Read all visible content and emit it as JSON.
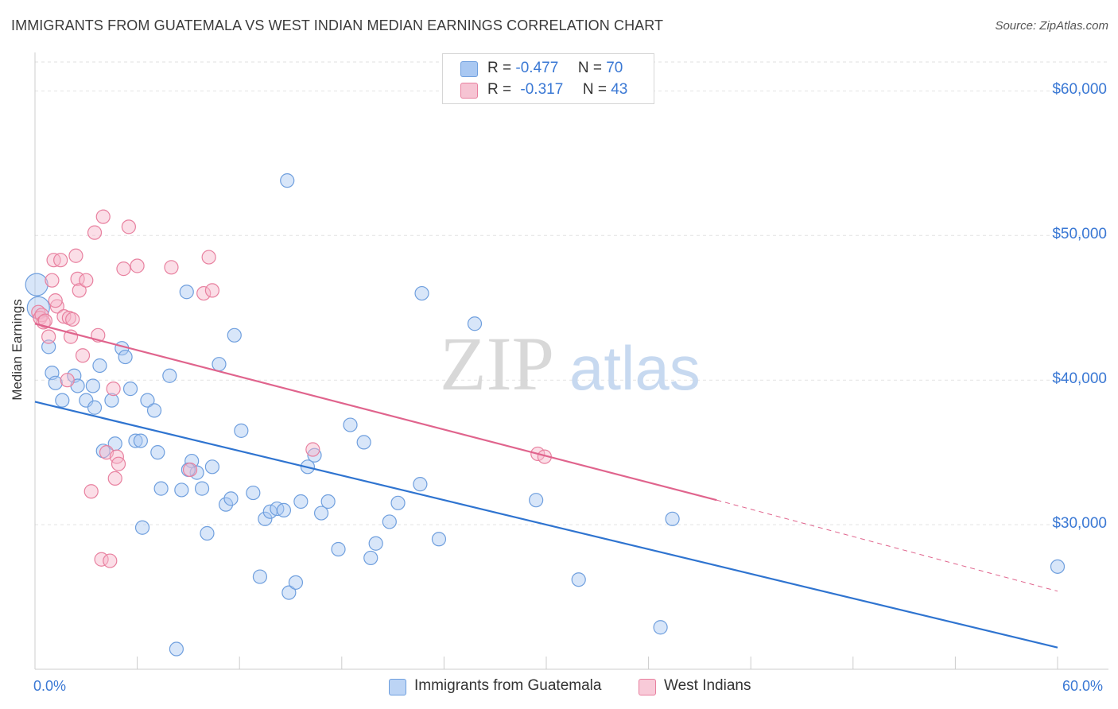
{
  "title": "IMMIGRANTS FROM GUATEMALA VS WEST INDIAN MEDIAN EARNINGS CORRELATION CHART",
  "source": "Source: ZipAtlas.com",
  "watermark": {
    "zip": "ZIP",
    "atlas": "atlas"
  },
  "legend": {
    "rows": [
      {
        "r_label": "R =",
        "r_value": "-0.477",
        "n_label": "N =",
        "n_value": "70",
        "color": "#a9c8f2"
      },
      {
        "r_label": "R =",
        "r_value": "-0.317",
        "n_label": "N =",
        "n_value": "43",
        "color": "#f6b6c9"
      }
    ]
  },
  "colors": {
    "blue_fill": "#a9c8f2",
    "blue_stroke": "#6f9fde",
    "blue_line": "#2f74d0",
    "pink_fill": "#f6b6c9",
    "pink_stroke": "#e8809f",
    "pink_line": "#e0648d",
    "axis_text": "#3a78d4",
    "grid": "#e2e2e2"
  },
  "chart_data": {
    "type": "scatter",
    "title": "IMMIGRANTS FROM GUATEMALA VS WEST INDIAN MEDIAN EARNINGS CORRELATION CHART",
    "xlabel": "",
    "ylabel": "Median Earnings",
    "x_tick_labels": [
      "0.0%",
      "60.0%"
    ],
    "y_tick_labels": [
      "$60,000",
      "$50,000",
      "$40,000",
      "$30,000"
    ],
    "y_ticks": [
      60000,
      50000,
      40000,
      30000
    ],
    "xlim": [
      0,
      60
    ],
    "ylim": [
      20000,
      62000
    ],
    "grid": true,
    "legend_position": "bottom-center",
    "series": [
      {
        "name": "Immigrants from Guatemala",
        "color": "#a9c8f2",
        "trend": {
          "x_start": 0,
          "y_start": 38500,
          "x_end": 60,
          "y_end": 21500
        },
        "points": [
          [
            0.1,
            46600
          ],
          [
            0.2,
            45000
          ],
          [
            0.8,
            42300
          ],
          [
            1.0,
            40500
          ],
          [
            1.2,
            39800
          ],
          [
            1.6,
            38600
          ],
          [
            2.3,
            40300
          ],
          [
            2.5,
            39600
          ],
          [
            3.0,
            38600
          ],
          [
            3.4,
            39600
          ],
          [
            3.5,
            38100
          ],
          [
            3.8,
            41000
          ],
          [
            4.0,
            35100
          ],
          [
            4.5,
            38600
          ],
          [
            4.7,
            35600
          ],
          [
            5.1,
            42200
          ],
          [
            5.3,
            41600
          ],
          [
            5.6,
            39400
          ],
          [
            5.9,
            35800
          ],
          [
            6.2,
            35800
          ],
          [
            6.3,
            29800
          ],
          [
            6.6,
            38600
          ],
          [
            7.0,
            37900
          ],
          [
            7.2,
            35000
          ],
          [
            7.4,
            32500
          ],
          [
            7.9,
            40300
          ],
          [
            8.3,
            21400
          ],
          [
            8.6,
            32400
          ],
          [
            8.9,
            46100
          ],
          [
            9.2,
            34400
          ],
          [
            9.5,
            33600
          ],
          [
            9.8,
            32500
          ],
          [
            10.1,
            29400
          ],
          [
            10.4,
            34000
          ],
          [
            10.8,
            41100
          ],
          [
            11.2,
            31400
          ],
          [
            11.5,
            31800
          ],
          [
            11.7,
            43100
          ],
          [
            12.1,
            36500
          ],
          [
            12.8,
            32200
          ],
          [
            13.2,
            26400
          ],
          [
            13.5,
            30400
          ],
          [
            13.8,
            30900
          ],
          [
            14.2,
            31100
          ],
          [
            14.6,
            31000
          ],
          [
            14.8,
            53800
          ],
          [
            14.9,
            25300
          ],
          [
            15.3,
            26000
          ],
          [
            15.6,
            31600
          ],
          [
            16.0,
            34000
          ],
          [
            16.4,
            34800
          ],
          [
            16.8,
            30800
          ],
          [
            17.2,
            31600
          ],
          [
            17.8,
            28300
          ],
          [
            18.5,
            36900
          ],
          [
            19.3,
            35700
          ],
          [
            19.7,
            27700
          ],
          [
            20.0,
            28700
          ],
          [
            20.8,
            30200
          ],
          [
            21.3,
            31500
          ],
          [
            22.6,
            32800
          ],
          [
            22.7,
            46000
          ],
          [
            23.7,
            29000
          ],
          [
            25.8,
            43900
          ],
          [
            29.4,
            31700
          ],
          [
            31.9,
            26200
          ],
          [
            36.7,
            22900
          ],
          [
            37.4,
            30400
          ],
          [
            60.0,
            27100
          ],
          [
            9.0,
            33800
          ]
        ]
      },
      {
        "name": "West Indians",
        "color": "#f6b6c9",
        "trend": {
          "x_start": 0,
          "y_start": 43900,
          "x_end": 40,
          "y_end": 31700,
          "dashed_to_x": 60,
          "dashed_to_y": 25400
        },
        "points": [
          [
            0.2,
            44700
          ],
          [
            0.3,
            44300
          ],
          [
            0.4,
            44500
          ],
          [
            0.5,
            44000
          ],
          [
            0.6,
            44100
          ],
          [
            0.8,
            43000
          ],
          [
            1.0,
            46900
          ],
          [
            1.1,
            48300
          ],
          [
            1.3,
            45100
          ],
          [
            1.5,
            48300
          ],
          [
            1.7,
            44400
          ],
          [
            1.9,
            40000
          ],
          [
            2.0,
            44300
          ],
          [
            2.1,
            43000
          ],
          [
            2.2,
            44200
          ],
          [
            2.4,
            48600
          ],
          [
            2.5,
            47000
          ],
          [
            2.6,
            46200
          ],
          [
            2.8,
            41700
          ],
          [
            3.0,
            46900
          ],
          [
            3.3,
            32300
          ],
          [
            3.5,
            50200
          ],
          [
            3.7,
            43100
          ],
          [
            3.9,
            27600
          ],
          [
            4.0,
            51300
          ],
          [
            4.2,
            35000
          ],
          [
            4.4,
            27500
          ],
          [
            4.6,
            39400
          ],
          [
            4.7,
            33200
          ],
          [
            4.8,
            34700
          ],
          [
            4.9,
            34200
          ],
          [
            5.2,
            47700
          ],
          [
            5.5,
            50600
          ],
          [
            6.0,
            47900
          ],
          [
            8.0,
            47800
          ],
          [
            9.1,
            33800
          ],
          [
            9.9,
            46000
          ],
          [
            10.2,
            48500
          ],
          [
            10.4,
            46200
          ],
          [
            16.3,
            35200
          ],
          [
            29.5,
            34900
          ],
          [
            29.9,
            34700
          ],
          [
            1.2,
            45500
          ]
        ]
      }
    ]
  }
}
